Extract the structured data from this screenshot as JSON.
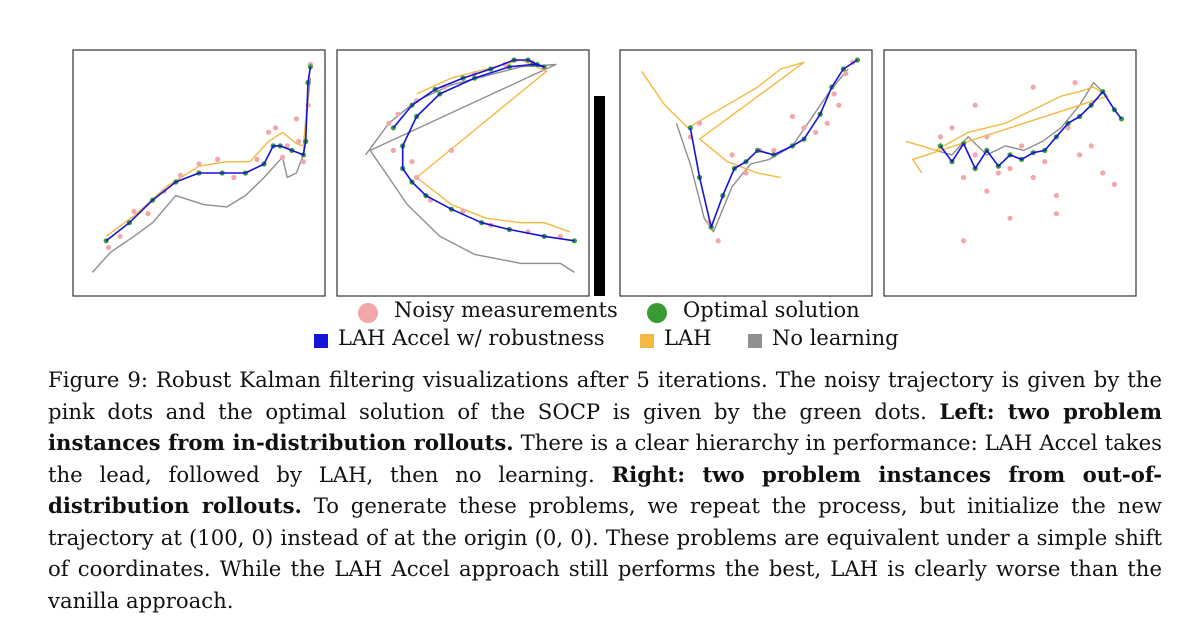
{
  "colors": {
    "noisy": "#f2a7aa",
    "optimal": "#3a9a35",
    "lah_accel": "#1414d8",
    "lah": "#f5b942",
    "no_learning": "#8f8f8f",
    "divider": "#000000",
    "frame": "#333333"
  },
  "legend": {
    "noisy_label": "Noisy measurements",
    "optimal_label": "Optimal solution",
    "lah_accel_label": "LAH Accel w/ robustness",
    "lah_label": "LAH",
    "no_learning_label": "No learning"
  },
  "caption": {
    "figure_label": "Figure 9:",
    "intro": "Robust Kalman filtering visualizations after 5 iterations. The noisy trajectory is given by the pink dots and the optimal solution of the SOCP is given by the green dots.",
    "left_bold": "Left: two problem instances from in-distribution rollouts.",
    "left_text": "There is a clear hierarchy in performance: LAH Accel takes the lead, followed by LAH, then no learning.",
    "right_bold": "Right: two problem instances from out-of-distribution rollouts.",
    "right_text": "To generate these problems, we repeat the process, but initialize the new trajectory at (100, 0) instead of at the origin (0, 0). These problems are equivalent under a simple shift of coordinates. While the LAH Accel approach still performs the best, LAH is clearly worse than the vanilla approach."
  },
  "chart_data": [
    {
      "type": "line",
      "title": "",
      "panel": "left-1",
      "xlim": [
        0,
        100
      ],
      "ylim": [
        0,
        100
      ],
      "solution": [
        [
          10,
          20
        ],
        [
          20,
          28
        ],
        [
          30,
          38
        ],
        [
          40,
          46
        ],
        [
          50,
          50
        ],
        [
          60,
          50
        ],
        [
          70,
          50
        ],
        [
          78,
          54
        ],
        [
          82,
          62
        ],
        [
          85,
          62
        ],
        [
          90,
          60
        ],
        [
          95,
          58
        ],
        [
          96,
          64
        ],
        [
          97,
          90
        ],
        [
          98,
          97
        ]
      ],
      "noisy": [
        [
          11,
          17
        ],
        [
          16,
          22
        ],
        [
          22,
          33
        ],
        [
          28,
          32
        ],
        [
          35,
          42
        ],
        [
          42,
          49
        ],
        [
          50,
          54
        ],
        [
          58,
          56
        ],
        [
          65,
          48
        ],
        [
          75,
          56
        ],
        [
          80,
          68
        ],
        [
          83,
          70
        ],
        [
          86,
          57
        ],
        [
          88,
          62
        ],
        [
          92,
          74
        ],
        [
          93,
          64
        ],
        [
          95,
          55
        ],
        [
          97,
          80
        ],
        [
          98,
          98
        ]
      ],
      "lah": [
        [
          10,
          22
        ],
        [
          22,
          31
        ],
        [
          36,
          44
        ],
        [
          50,
          53
        ],
        [
          62,
          55
        ],
        [
          72,
          55
        ],
        [
          80,
          64
        ],
        [
          86,
          68
        ],
        [
          92,
          63
        ],
        [
          95,
          62
        ],
        [
          97,
          85
        ],
        [
          98,
          98
        ]
      ],
      "no_learning": [
        [
          4,
          6
        ],
        [
          12,
          15
        ],
        [
          22,
          22
        ],
        [
          30,
          28
        ],
        [
          40,
          40
        ],
        [
          52,
          36
        ],
        [
          62,
          35
        ],
        [
          70,
          40
        ],
        [
          78,
          48
        ],
        [
          86,
          57
        ],
        [
          88,
          48
        ],
        [
          92,
          50
        ],
        [
          95,
          58
        ],
        [
          97,
          82
        ],
        [
          98,
          92
        ]
      ]
    },
    {
      "type": "line",
      "title": "",
      "panel": "left-2",
      "xlim": [
        0,
        100
      ],
      "ylim": [
        0,
        100
      ],
      "solution": [
        [
          20,
          70
        ],
        [
          28,
          80
        ],
        [
          38,
          87
        ],
        [
          50,
          92
        ],
        [
          62,
          96
        ],
        [
          72,
          100
        ],
        [
          78,
          100
        ],
        [
          82,
          98
        ],
        [
          85,
          97
        ],
        [
          80,
          98
        ],
        [
          70,
          97
        ],
        [
          55,
          92
        ],
        [
          40,
          85
        ],
        [
          30,
          75
        ],
        [
          24,
          62
        ],
        [
          24,
          52
        ],
        [
          28,
          46
        ],
        [
          34,
          40
        ],
        [
          45,
          34
        ],
        [
          58,
          28
        ],
        [
          70,
          25
        ],
        [
          85,
          22
        ],
        [
          98,
          20
        ]
      ],
      "noisy": [
        [
          18,
          72
        ],
        [
          22,
          76
        ],
        [
          30,
          82
        ],
        [
          42,
          88
        ],
        [
          55,
          94
        ],
        [
          68,
          98
        ],
        [
          80,
          99
        ],
        [
          85,
          96
        ],
        [
          20,
          60
        ],
        [
          28,
          55
        ],
        [
          30,
          48
        ],
        [
          45,
          60
        ],
        [
          36,
          38
        ],
        [
          50,
          33
        ],
        [
          62,
          27
        ],
        [
          78,
          24
        ],
        [
          92,
          22
        ]
      ],
      "lah": [
        [
          30,
          85
        ],
        [
          45,
          92
        ],
        [
          60,
          96
        ],
        [
          75,
          100
        ],
        [
          86,
          95
        ],
        [
          30,
          48
        ],
        [
          45,
          36
        ],
        [
          60,
          30
        ],
        [
          75,
          28
        ],
        [
          85,
          28
        ],
        [
          96,
          24
        ]
      ],
      "no_learning": [
        [
          8,
          58
        ],
        [
          18,
          72
        ],
        [
          30,
          82
        ],
        [
          45,
          89
        ],
        [
          60,
          93
        ],
        [
          75,
          97
        ],
        [
          90,
          98
        ],
        [
          10,
          60
        ],
        [
          18,
          48
        ],
        [
          26,
          36
        ],
        [
          40,
          22
        ],
        [
          55,
          14
        ],
        [
          75,
          10
        ],
        [
          92,
          10
        ],
        [
          98,
          6
        ]
      ]
    },
    {
      "type": "line",
      "title": "",
      "panel": "right-1",
      "xlim": [
        0,
        100
      ],
      "ylim": [
        0,
        100
      ],
      "solution": [
        [
          26,
          70
        ],
        [
          30,
          48
        ],
        [
          35,
          26
        ],
        [
          40,
          40
        ],
        [
          45,
          52
        ],
        [
          50,
          55
        ],
        [
          55,
          60
        ],
        [
          62,
          58
        ],
        [
          70,
          62
        ],
        [
          75,
          65
        ],
        [
          82,
          76
        ],
        [
          87,
          88
        ],
        [
          92,
          96
        ],
        [
          98,
          100
        ]
      ],
      "noisy": [
        [
          26,
          66
        ],
        [
          30,
          72
        ],
        [
          34,
          28
        ],
        [
          38,
          20
        ],
        [
          44,
          58
        ],
        [
          50,
          50
        ],
        [
          56,
          60
        ],
        [
          62,
          60
        ],
        [
          70,
          75
        ],
        [
          75,
          70
        ],
        [
          80,
          68
        ],
        [
          85,
          72
        ],
        [
          88,
          85
        ],
        [
          90,
          80
        ],
        [
          93,
          94
        ],
        [
          96,
          99
        ]
      ],
      "lah": [
        [
          5,
          95
        ],
        [
          15,
          80
        ],
        [
          25,
          70
        ],
        [
          35,
          76
        ],
        [
          45,
          82
        ],
        [
          55,
          88
        ],
        [
          65,
          96
        ],
        [
          75,
          99
        ],
        [
          30,
          65
        ],
        [
          42,
          55
        ],
        [
          55,
          50
        ],
        [
          65,
          48
        ]
      ],
      "no_learning": [
        [
          20,
          72
        ],
        [
          26,
          54
        ],
        [
          32,
          30
        ],
        [
          36,
          24
        ],
        [
          44,
          44
        ],
        [
          52,
          54
        ],
        [
          60,
          56
        ],
        [
          70,
          62
        ],
        [
          78,
          74
        ],
        [
          86,
          86
        ],
        [
          94,
          96
        ]
      ]
    },
    {
      "type": "line",
      "title": "",
      "panel": "right-2",
      "xlim": [
        0,
        100
      ],
      "ylim": [
        0,
        100
      ],
      "solution": [
        [
          20,
          62
        ],
        [
          25,
          55
        ],
        [
          30,
          63
        ],
        [
          35,
          52
        ],
        [
          40,
          60
        ],
        [
          45,
          53
        ],
        [
          50,
          58
        ],
        [
          55,
          56
        ],
        [
          60,
          59
        ],
        [
          65,
          60
        ],
        [
          70,
          66
        ],
        [
          75,
          72
        ],
        [
          80,
          75
        ],
        [
          85,
          80
        ],
        [
          90,
          86
        ],
        [
          95,
          78
        ],
        [
          98,
          74
        ]
      ],
      "noisy": [
        [
          20,
          66
        ],
        [
          25,
          70
        ],
        [
          30,
          48
        ],
        [
          35,
          58
        ],
        [
          40,
          66
        ],
        [
          45,
          50
        ],
        [
          50,
          52
        ],
        [
          55,
          62
        ],
        [
          60,
          48
        ],
        [
          65,
          55
        ],
        [
          70,
          40
        ],
        [
          75,
          70
        ],
        [
          80,
          58
        ],
        [
          85,
          62
        ],
        [
          90,
          50
        ],
        [
          95,
          45
        ],
        [
          78,
          90
        ],
        [
          60,
          88
        ],
        [
          35,
          80
        ],
        [
          50,
          30
        ],
        [
          30,
          20
        ],
        [
          40,
          42
        ],
        [
          70,
          32
        ]
      ],
      "lah": [
        [
          5,
          64
        ],
        [
          12,
          62
        ],
        [
          18,
          60
        ],
        [
          25,
          64
        ],
        [
          32,
          68
        ],
        [
          40,
          70
        ],
        [
          48,
          72
        ],
        [
          56,
          76
        ],
        [
          64,
          80
        ],
        [
          72,
          84
        ],
        [
          80,
          86
        ],
        [
          86,
          88
        ],
        [
          92,
          84
        ],
        [
          8,
          56
        ],
        [
          12,
          50
        ]
      ],
      "no_learning": [
        [
          18,
          60
        ],
        [
          25,
          58
        ],
        [
          32,
          66
        ],
        [
          40,
          58
        ],
        [
          48,
          62
        ],
        [
          56,
          60
        ],
        [
          64,
          64
        ],
        [
          72,
          70
        ],
        [
          80,
          80
        ],
        [
          86,
          90
        ],
        [
          92,
          84
        ]
      ]
    }
  ]
}
